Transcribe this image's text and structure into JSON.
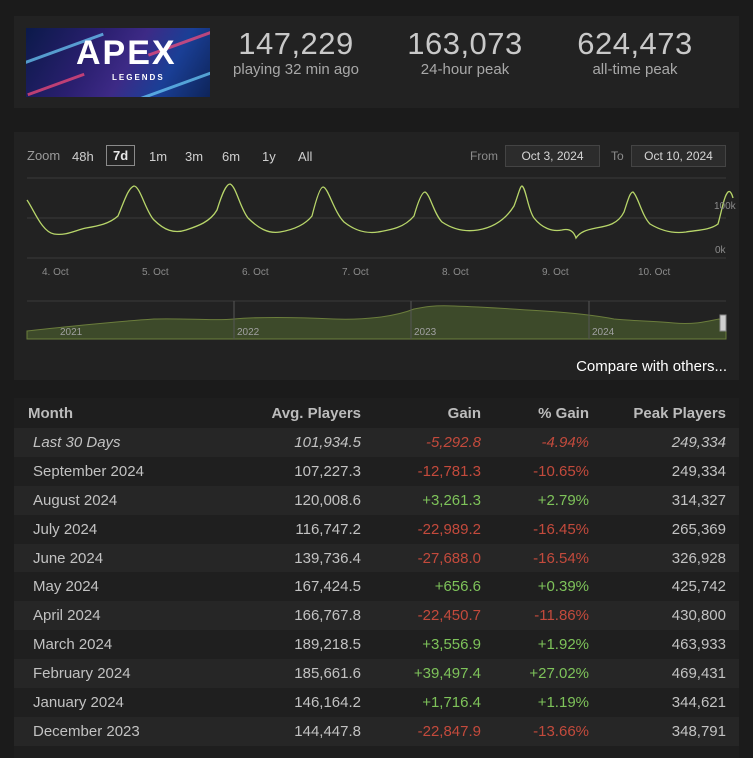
{
  "game": {
    "banner_logo": "APEX",
    "banner_sub": "LEGENDS"
  },
  "stats": [
    {
      "value": "147,229",
      "label": "playing 32 min ago"
    },
    {
      "value": "163,073",
      "label": "24-hour peak"
    },
    {
      "value": "624,473",
      "label": "all-time peak"
    }
  ],
  "chart": {
    "zoom_label": "Zoom",
    "zoom_options": [
      "48h",
      "7d",
      "1m",
      "3m",
      "6m",
      "1y",
      "All"
    ],
    "zoom_selected": "7d",
    "from_label": "From",
    "from_value": "Oct 3, 2024",
    "to_label": "To",
    "to_value": "Oct 10, 2024",
    "compare_link": "Compare with others..."
  },
  "chart_data": {
    "type": "line",
    "x_labels": [
      "4. Oct",
      "5. Oct",
      "6. Oct",
      "7. Oct",
      "8. Oct",
      "9. Oct",
      "10. Oct"
    ],
    "y_labels": [
      "100k",
      "0k"
    ],
    "line_color": "#b8d66a",
    "navigator_labels": [
      "2021",
      "2022",
      "2023",
      "2024"
    ]
  },
  "table": {
    "headers": [
      "Month",
      "Avg. Players",
      "Gain",
      "% Gain",
      "Peak Players"
    ],
    "rows": [
      {
        "month": "Last 30 Days",
        "avg": "101,934.5",
        "gain": "-5,292.8",
        "pct": "-4.94%",
        "peak": "249,334",
        "dir": "neg"
      },
      {
        "month": "September 2024",
        "avg": "107,227.3",
        "gain": "-12,781.3",
        "pct": "-10.65%",
        "peak": "249,334",
        "dir": "neg"
      },
      {
        "month": "August 2024",
        "avg": "120,008.6",
        "gain": "+3,261.3",
        "pct": "+2.79%",
        "peak": "314,327",
        "dir": "pos"
      },
      {
        "month": "July 2024",
        "avg": "116,747.2",
        "gain": "-22,989.2",
        "pct": "-16.45%",
        "peak": "265,369",
        "dir": "neg"
      },
      {
        "month": "June 2024",
        "avg": "139,736.4",
        "gain": "-27,688.0",
        "pct": "-16.54%",
        "peak": "326,928",
        "dir": "neg"
      },
      {
        "month": "May 2024",
        "avg": "167,424.5",
        "gain": "+656.6",
        "pct": "+0.39%",
        "peak": "425,742",
        "dir": "pos"
      },
      {
        "month": "April 2024",
        "avg": "166,767.8",
        "gain": "-22,450.7",
        "pct": "-11.86%",
        "peak": "430,800",
        "dir": "neg"
      },
      {
        "month": "March 2024",
        "avg": "189,218.5",
        "gain": "+3,556.9",
        "pct": "+1.92%",
        "peak": "463,933",
        "dir": "pos"
      },
      {
        "month": "February 2024",
        "avg": "185,661.6",
        "gain": "+39,497.4",
        "pct": "+27.02%",
        "peak": "469,431",
        "dir": "pos"
      },
      {
        "month": "January 2024",
        "avg": "146,164.2",
        "gain": "+1,716.4",
        "pct": "+1.19%",
        "peak": "344,621",
        "dir": "pos"
      },
      {
        "month": "December 2023",
        "avg": "144,447.8",
        "gain": "-22,847.9",
        "pct": "-13.66%",
        "peak": "348,791",
        "dir": "neg"
      }
    ]
  },
  "colors": {
    "negative": "#c34a3c",
    "positive": "#7ec35a",
    "line": "#b8d66a"
  }
}
